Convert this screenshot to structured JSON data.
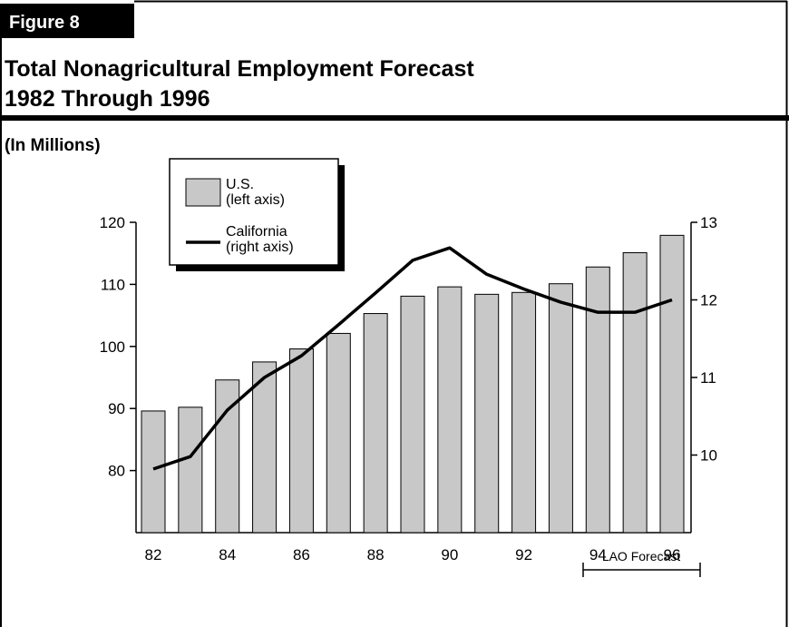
{
  "chart_data": {
    "type": "bar-line",
    "figure_label": "Figure 8",
    "title": [
      "Total Nonagricultural Employment Forecast",
      "1982 Through 1996"
    ],
    "subtitle": "(In Millions)",
    "categories": [
      "82",
      null,
      "84",
      null,
      "86",
      null,
      "88",
      null,
      "90",
      null,
      "92",
      null,
      "94",
      null,
      "96"
    ],
    "series": [
      {
        "name": "U.S.",
        "legend_note": "(left axis)",
        "type": "bar",
        "color": "#c8c8c8",
        "values": [
          89.6,
          90.2,
          94.6,
          97.5,
          99.6,
          102.1,
          105.3,
          108.1,
          109.6,
          108.4,
          108.7,
          110.1,
          112.8,
          115.1,
          117.9
        ]
      },
      {
        "name": "California",
        "legend_note": "(right axis)",
        "type": "line",
        "color": "#000000",
        "axis": "y2",
        "values": [
          9.82,
          9.98,
          10.58,
          11.0,
          11.28,
          11.68,
          12.09,
          12.51,
          12.67,
          12.33,
          12.14,
          11.97,
          11.84,
          11.84,
          12.0
        ]
      }
    ],
    "ylim": [
      70,
      120
    ],
    "yticks": [
      80,
      90,
      100,
      110,
      120
    ],
    "y2lim": [
      9,
      13
    ],
    "y2ticks": [
      10,
      11,
      12,
      13
    ],
    "annotation": "LAO Forecast",
    "grid": false
  }
}
